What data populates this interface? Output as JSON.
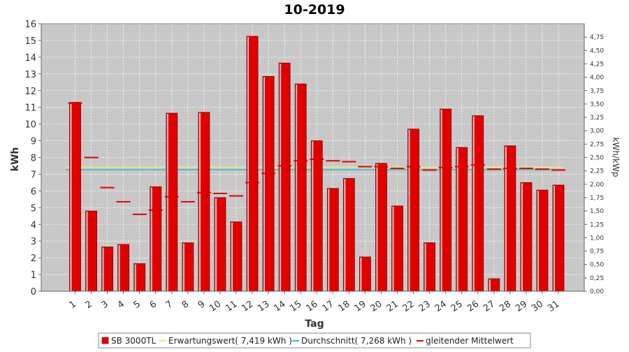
{
  "chart_data": {
    "type": "bar",
    "title": "10-2019",
    "xlabel": "Tag",
    "ylabel": "kWh",
    "y2label": "kWh/kWp",
    "ylim": [
      0,
      16
    ],
    "y2lim": [
      0,
      5.0
    ],
    "y_ticks": [
      "0",
      "1",
      "2",
      "3",
      "4",
      "5",
      "6",
      "7",
      "8",
      "9",
      "10",
      "11",
      "12",
      "13",
      "14",
      "15",
      "16"
    ],
    "y2_ticks": [
      "0,00",
      "0,25",
      "0,50",
      "0,75",
      "1,00",
      "1,25",
      "1,50",
      "1,75",
      "2,00",
      "2,25",
      "2,50",
      "2,75",
      "3,00",
      "3,25",
      "3,50",
      "3,75",
      "4,00",
      "4,25",
      "4,50",
      "4,75"
    ],
    "categories": [
      "1",
      "2",
      "3",
      "4",
      "5",
      "6",
      "7",
      "8",
      "9",
      "10",
      "11",
      "12",
      "13",
      "14",
      "15",
      "16",
      "17",
      "18",
      "19",
      "20",
      "21",
      "22",
      "23",
      "24",
      "25",
      "26",
      "27",
      "28",
      "29",
      "30",
      "31"
    ],
    "grid": true,
    "legend_position": "bottom",
    "series": [
      {
        "name": "SB 3000TL",
        "kind": "bar",
        "color": "#e00000",
        "values": [
          11.3,
          4.8,
          2.65,
          2.8,
          1.65,
          6.25,
          10.65,
          2.9,
          10.7,
          5.6,
          4.15,
          15.25,
          12.85,
          13.65,
          12.4,
          9.0,
          6.15,
          6.75,
          2.05,
          7.65,
          5.1,
          9.7,
          2.9,
          10.9,
          8.6,
          10.5,
          0.75,
          8.7,
          6.5,
          6.05,
          6.35
        ]
      },
      {
        "name": "gleitender Mittelwert",
        "kind": "step",
        "color": "#dd0000",
        "values": [
          11.25,
          8.0,
          6.2,
          5.35,
          4.6,
          4.85,
          5.65,
          5.35,
          5.9,
          5.85,
          5.7,
          6.5,
          7.05,
          7.5,
          7.8,
          7.9,
          7.8,
          7.75,
          7.45,
          7.45,
          7.35,
          7.45,
          7.25,
          7.4,
          7.45,
          7.55,
          7.3,
          7.35,
          7.35,
          7.3,
          7.25
        ]
      }
    ],
    "reference_lines": [
      {
        "label": "Erwartungswert( 7,419 kWh )",
        "value": 7.419,
        "color": "#eeee88"
      },
      {
        "label": "Durchschnitt( 7,268 kWh )",
        "value": 7.268,
        "color": "#33bbcc"
      }
    ],
    "legend": [
      {
        "label": "SB 3000TL",
        "color": "#e00000",
        "marker": "square"
      },
      {
        "label": "Erwartungswert( 7,419 kWh )",
        "color": "#eeee88",
        "marker": "line"
      },
      {
        "label": "Durchschnitt( 7,268 kWh )",
        "color": "#33bbcc",
        "marker": "line"
      },
      {
        "label": "gleitender Mittelwert",
        "color": "#dd0000",
        "marker": "line"
      }
    ]
  }
}
